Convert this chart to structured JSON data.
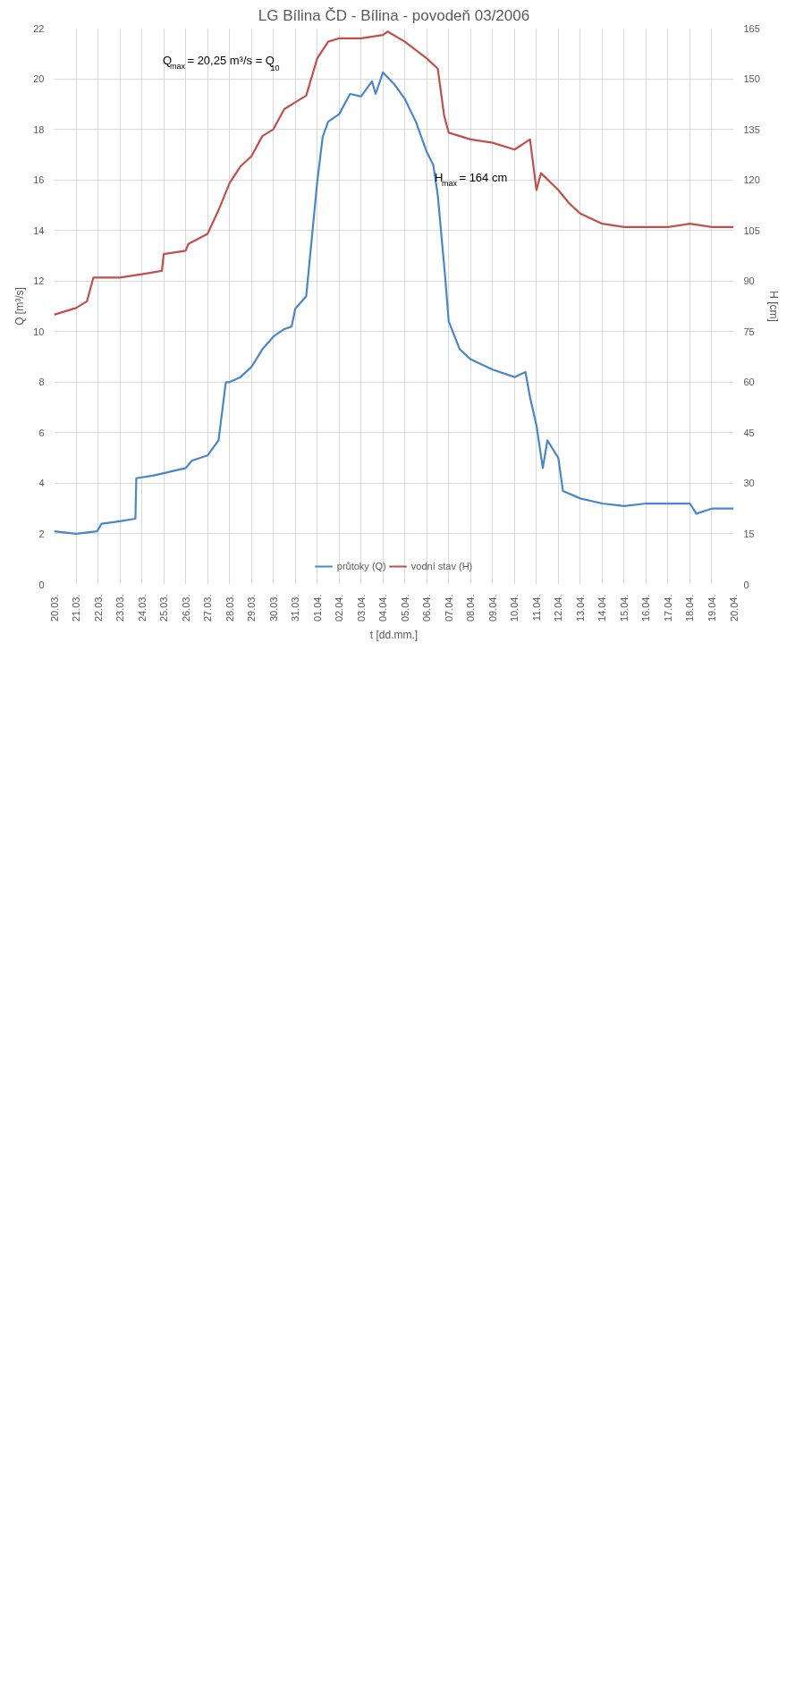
{
  "chart_data": {
    "type": "line",
    "title": "LG Bílina ČD - Bílina - povodeň 03/2006",
    "xlabel": "t [dd.mm.]",
    "ylabel": "Q [m³/s]",
    "y2label": "H [cm]",
    "annotations": [
      "Q$_{max}$ = 20,25 m³/s = Q$_{10}$",
      "H$_{max}$ = 164 cm"
    ],
    "series": [
      {
        "name": "průtoky (Q)",
        "color": "#4a86c8",
        "x": [
          "2006-03-20T00:00",
          "2006-03-21T00:00",
          "2006-03-21T23:00",
          "2006-03-22T04:00",
          "2006-03-23T00:00",
          "2006-03-23T17:00",
          "2006-03-23T18:00",
          "2006-03-24T12:00",
          "2006-03-25T00:00",
          "2006-03-26T00:00",
          "2006-03-26T07:00",
          "2006-03-27T00:00",
          "2006-03-27T12:00",
          "2006-03-27T20:00",
          "2006-03-28T00:00",
          "2006-03-28T12:00",
          "2006-03-29T00:00",
          "2006-03-29T12:00",
          "2006-03-30T00:00",
          "2006-03-30T12:00",
          "2006-03-30T20:00",
          "2006-03-31T00:00",
          "2006-03-31T12:00",
          "2006-04-01T00:00",
          "2006-04-01T06:00",
          "2006-04-01T12:00",
          "2006-04-02T00:00",
          "2006-04-02T12:00",
          "2006-04-03T00:00",
          "2006-04-03T12:00",
          "2006-04-03T16:00",
          "2006-04-04T00:00",
          "2006-04-04T12:00",
          "2006-04-05T00:00",
          "2006-04-05T12:00",
          "2006-04-06T00:00",
          "2006-04-06T07:00",
          "2006-04-06T12:00",
          "2006-04-06T20:00",
          "2006-04-07T00:00",
          "2006-04-07T12:00",
          "2006-04-08T00:00",
          "2006-04-09T00:00",
          "2006-04-10T00:00",
          "2006-04-10T12:00",
          "2006-04-10T17:00",
          "2006-04-11T00:00",
          "2006-04-11T07:00",
          "2006-04-11T12:00",
          "2006-04-12T00:00",
          "2006-04-12T05:00",
          "2006-04-13T00:00",
          "2006-04-14T00:00",
          "2006-04-15T00:00",
          "2006-04-16T00:00",
          "2006-04-17T00:00",
          "2006-04-18T00:00",
          "2006-04-18T07:00",
          "2006-04-19T00:00",
          "2006-04-20T00:00"
        ],
        "values": [
          2.1,
          2.0,
          2.1,
          2.4,
          2.5,
          2.6,
          4.2,
          4.3,
          4.4,
          4.6,
          4.9,
          5.1,
          5.7,
          8.0,
          8.0,
          8.2,
          8.6,
          9.3,
          9.8,
          10.1,
          10.2,
          10.9,
          11.4,
          15.9,
          17.7,
          18.3,
          18.6,
          19.4,
          19.3,
          19.9,
          19.4,
          20.25,
          19.8,
          19.2,
          18.3,
          17.1,
          16.6,
          15.4,
          12.2,
          10.4,
          9.3,
          8.9,
          8.5,
          8.2,
          8.4,
          7.4,
          6.3,
          4.6,
          5.7,
          5.0,
          3.7,
          3.4,
          3.2,
          3.1,
          3.2,
          3.2,
          3.2,
          2.8,
          3.0,
          3.0
        ]
      },
      {
        "name": "vodní stav (H)",
        "color": "#c0504d",
        "axis": "y2",
        "x": [
          "2006-03-20T00:00",
          "2006-03-21T00:00",
          "2006-03-21T12:00",
          "2006-03-21T19:00",
          "2006-03-22T00:00",
          "2006-03-23T00:00",
          "2006-03-24T00:00",
          "2006-03-24T22:00",
          "2006-03-25T00:00",
          "2006-03-26T00:00",
          "2006-03-26T03:00",
          "2006-03-27T00:00",
          "2006-03-27T12:00",
          "2006-03-28T00:00",
          "2006-03-28T12:00",
          "2006-03-29T00:00",
          "2006-03-29T12:00",
          "2006-03-30T00:00",
          "2006-03-30T12:00",
          "2006-03-31T00:00",
          "2006-03-31T12:00",
          "2006-04-01T00:00",
          "2006-04-01T12:00",
          "2006-04-02T00:00",
          "2006-04-03T00:00",
          "2006-04-04T00:00",
          "2006-04-04T05:00",
          "2006-04-05T00:00",
          "2006-04-06T00:00",
          "2006-04-06T12:00",
          "2006-04-06T19:00",
          "2006-04-07T00:00",
          "2006-04-08T00:00",
          "2006-04-09T00:00",
          "2006-04-10T00:00",
          "2006-04-10T17:00",
          "2006-04-11T00:00",
          "2006-04-11T05:00",
          "2006-04-12T00:00",
          "2006-04-12T12:00",
          "2006-04-13T00:00",
          "2006-04-14T00:00",
          "2006-04-15T00:00",
          "2006-04-16T00:00",
          "2006-04-17T00:00",
          "2006-04-18T00:00",
          "2006-04-19T00:00",
          "2006-04-20T00:00"
        ],
        "values": [
          80,
          82,
          84,
          91,
          91,
          91,
          92,
          93,
          98,
          99,
          101,
          104,
          111,
          119,
          124,
          127,
          133,
          135,
          141,
          143,
          145,
          156,
          161,
          162,
          162,
          163,
          164,
          161,
          156,
          153,
          139,
          134,
          132,
          131,
          129,
          132,
          117,
          122,
          117,
          113,
          110,
          107,
          106,
          106,
          106,
          107,
          106,
          106
        ]
      }
    ],
    "xlim": [
      "2006-03-20",
      "2006-04-20"
    ],
    "xticks": [
      {
        "value": "2006-03-20",
        "label": "20.03."
      },
      {
        "value": "2006-03-21",
        "label": "21.03."
      },
      {
        "value": "2006-03-22",
        "label": "22.03."
      },
      {
        "value": "2006-03-23",
        "label": "23.03."
      },
      {
        "value": "2006-03-24",
        "label": "24.03."
      },
      {
        "value": "2006-03-25",
        "label": "25.03."
      },
      {
        "value": "2006-03-26",
        "label": "26.03."
      },
      {
        "value": "2006-03-27",
        "label": "27.03."
      },
      {
        "value": "2006-03-28",
        "label": "28.03."
      },
      {
        "value": "2006-03-29",
        "label": "29.03."
      },
      {
        "value": "2006-03-30",
        "label": "30.03."
      },
      {
        "value": "2006-03-31",
        "label": "31.03."
      },
      {
        "value": "2006-04-01",
        "label": "01.04."
      },
      {
        "value": "2006-04-02",
        "label": "02.04."
      },
      {
        "value": "2006-04-03",
        "label": "03.04."
      },
      {
        "value": "2006-04-04",
        "label": "04.04."
      },
      {
        "value": "2006-04-05",
        "label": "05.04."
      },
      {
        "value": "2006-04-06",
        "label": "06.04."
      },
      {
        "value": "2006-04-07",
        "label": "07.04."
      },
      {
        "value": "2006-04-08",
        "label": "08.04."
      },
      {
        "value": "2006-04-09",
        "label": "09.04."
      },
      {
        "value": "2006-04-10",
        "label": "10.04."
      },
      {
        "value": "2006-04-11",
        "label": "11.04."
      },
      {
        "value": "2006-04-12",
        "label": "12.04."
      },
      {
        "value": "2006-04-13",
        "label": "13.04."
      },
      {
        "value": "2006-04-14",
        "label": "14.04."
      },
      {
        "value": "2006-04-15",
        "label": "15.04."
      },
      {
        "value": "2006-04-16",
        "label": "16.04."
      },
      {
        "value": "2006-04-17",
        "label": "17.04."
      },
      {
        "value": "2006-04-18",
        "label": "18.04."
      },
      {
        "value": "2006-04-19",
        "label": "19.04."
      },
      {
        "value": "2006-04-20",
        "label": "20.04."
      }
    ],
    "ylim": [
      0,
      22
    ],
    "yticks": [
      0,
      2,
      4,
      6,
      8,
      10,
      12,
      14,
      16,
      18,
      20,
      22
    ],
    "y2lim": [
      0,
      165
    ],
    "y2ticks": [
      0,
      15,
      30,
      45,
      60,
      75,
      90,
      105,
      120,
      135,
      150,
      165
    ],
    "grid": true,
    "legend": "bottom",
    "line_style": "solid",
    "marker": "none"
  }
}
